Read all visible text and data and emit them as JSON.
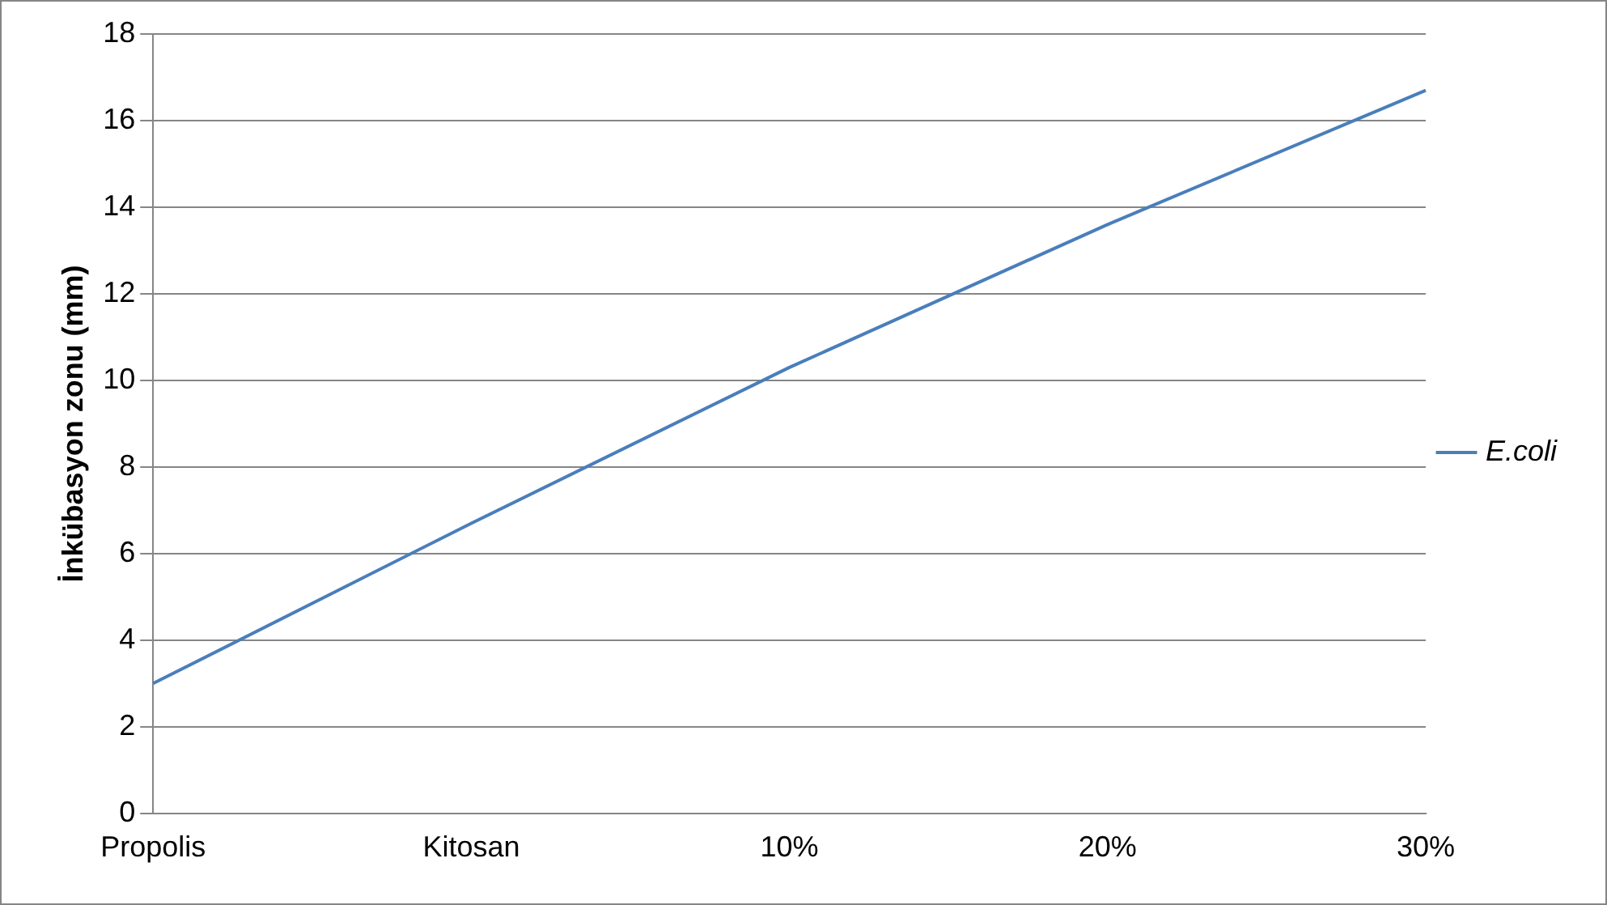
{
  "chart_data": {
    "type": "line",
    "ylabel": "İnkübasyon zonu (mm)",
    "categories": [
      "Propolis",
      "Kitosan",
      "10%",
      "20%",
      "30%"
    ],
    "series": [
      {
        "name": "E.coli",
        "color": "#4a7ebb",
        "values": [
          3,
          6.7,
          10.3,
          13.6,
          16.7
        ]
      }
    ],
    "ylim": [
      0,
      18
    ],
    "yticks": [
      0,
      2,
      4,
      6,
      8,
      10,
      12,
      14,
      16,
      18
    ],
    "grid": "y",
    "legend": "right",
    "marker": "none"
  }
}
